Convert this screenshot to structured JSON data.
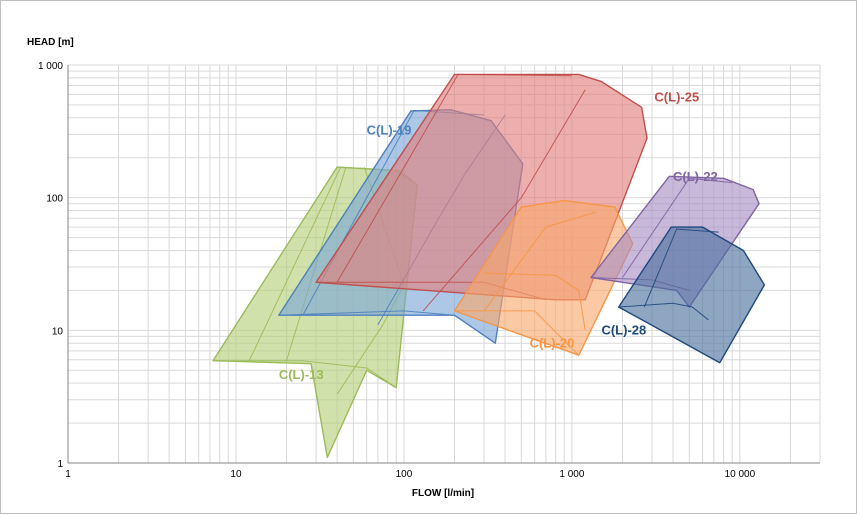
{
  "chart_data": {
    "type": "area",
    "xlabel": "FLOW [l/min]",
    "ylabel": "HEAD [m]",
    "x_scale": "log",
    "y_scale": "log",
    "xlim": [
      1,
      30000
    ],
    "ylim": [
      1,
      1000
    ],
    "grid": true,
    "x_ticks": [
      {
        "value": 1,
        "label": "1"
      },
      {
        "value": 10,
        "label": "10"
      },
      {
        "value": 100,
        "label": "100"
      },
      {
        "value": 1000,
        "label": "1 000"
      },
      {
        "value": 10000,
        "label": "10 000"
      }
    ],
    "y_ticks": [
      {
        "value": 1,
        "label": "1"
      },
      {
        "value": 10,
        "label": "10"
      },
      {
        "value": 100,
        "label": "100"
      },
      {
        "value": 1000,
        "label": "1 000"
      }
    ],
    "series": [
      {
        "name": "C(L)-13",
        "color": "#9bbb59",
        "fill": "#b3cf78",
        "label": {
          "x": 18,
          "y": 4.3
        },
        "envelope": [
          [
            7.3,
            5.9
          ],
          [
            40,
            170
          ],
          [
            90,
            160
          ],
          [
            120,
            125
          ],
          [
            90,
            3.7
          ],
          [
            60,
            5
          ],
          [
            35,
            1.1
          ],
          [
            28,
            5.6
          ],
          [
            7.3,
            5.9
          ]
        ],
        "curves": [
          [
            [
              12,
              5.9
            ],
            [
              42,
              170
            ],
            [
              95,
              160
            ],
            [
              120,
              125
            ]
          ],
          [
            [
              20,
              5.9
            ],
            [
              45,
              168
            ]
          ],
          [
            [
              40,
              3.3
            ],
            [
              75,
              11
            ],
            [
              100,
              22
            ],
            [
              58,
              170
            ]
          ],
          [
            [
              7.3,
              5.9
            ],
            [
              25,
              5.9
            ],
            [
              60,
              5.2
            ],
            [
              90,
              3.7
            ]
          ]
        ]
      },
      {
        "name": "C(L)-19",
        "color": "#4f81bd",
        "fill": "#7aa6d8",
        "label": {
          "x": 60,
          "y": 300
        },
        "envelope": [
          [
            18,
            13
          ],
          [
            110,
            450
          ],
          [
            190,
            460
          ],
          [
            330,
            380
          ],
          [
            510,
            180
          ],
          [
            350,
            8
          ],
          [
            200,
            13
          ],
          [
            18,
            13
          ]
        ],
        "curves": [
          [
            [
              25,
              13
            ],
            [
              115,
              455
            ],
            [
              300,
              420
            ]
          ],
          [
            [
              70,
              11
            ],
            [
              150,
              60
            ],
            [
              230,
              150
            ],
            [
              400,
              420
            ]
          ],
          [
            [
              18,
              13
            ],
            [
              100,
              14
            ],
            [
              200,
              13
            ],
            [
              350,
              8
            ]
          ]
        ]
      },
      {
        "name": "C(L)-25",
        "color": "#c0504d",
        "fill": "#e27e7b",
        "label": {
          "x": 3100,
          "y": 530
        },
        "envelope": [
          [
            30,
            23
          ],
          [
            200,
            850
          ],
          [
            1100,
            850
          ],
          [
            1500,
            750
          ],
          [
            2600,
            480
          ],
          [
            2800,
            280
          ],
          [
            1200,
            17
          ],
          [
            800,
            17
          ],
          [
            30,
            23
          ]
        ],
        "curves": [
          [
            [
              40,
              23
            ],
            [
              210,
              850
            ],
            [
              1000,
              830
            ]
          ],
          [
            [
              130,
              14
            ],
            [
              500,
              100
            ],
            [
              1200,
              650
            ]
          ],
          [
            [
              30,
              23
            ],
            [
              300,
              23
            ],
            [
              700,
              17
            ]
          ]
        ]
      },
      {
        "name": "C(L)-20",
        "color": "#f79646",
        "fill": "#f9a86b",
        "label": {
          "x": 560,
          "y": 7.4
        },
        "envelope": [
          [
            200,
            14
          ],
          [
            500,
            85
          ],
          [
            900,
            95
          ],
          [
            1800,
            85
          ],
          [
            2300,
            45
          ],
          [
            1100,
            6.5
          ],
          [
            200,
            14
          ]
        ],
        "curves": [
          [
            [
              300,
              14
            ],
            [
              700,
              60
            ],
            [
              1400,
              78
            ]
          ],
          [
            [
              300,
              27
            ],
            [
              800,
              26
            ],
            [
              1100,
              20
            ],
            [
              1200,
              10
            ]
          ],
          [
            [
              200,
              14
            ],
            [
              600,
              14
            ],
            [
              1100,
              6.5
            ]
          ]
        ]
      },
      {
        "name": "C(L)-22",
        "color": "#8064a2",
        "fill": "#a78dc4",
        "label": {
          "x": 4000,
          "y": 133
        },
        "envelope": [
          [
            1300,
            25
          ],
          [
            3800,
            145
          ],
          [
            8000,
            140
          ],
          [
            12000,
            115
          ],
          [
            13000,
            90
          ],
          [
            5000,
            15
          ],
          [
            4200,
            20
          ],
          [
            1300,
            25
          ]
        ],
        "curves": [
          [
            [
              2000,
              25
            ],
            [
              5000,
              140
            ],
            [
              9000,
              130
            ]
          ],
          [
            [
              1300,
              25
            ],
            [
              3000,
              24
            ],
            [
              5000,
              20
            ]
          ]
        ]
      },
      {
        "name": "C(L)-28",
        "color": "#1f497d",
        "fill": "#4a6f9e",
        "label": {
          "x": 1500,
          "y": 9.3
        },
        "envelope": [
          [
            1900,
            15
          ],
          [
            3900,
            60
          ],
          [
            6000,
            60
          ],
          [
            10500,
            40
          ],
          [
            14000,
            22
          ],
          [
            7600,
            5.7
          ],
          [
            1900,
            15
          ]
        ],
        "curves": [
          [
            [
              2700,
              15
            ],
            [
              4200,
              58
            ],
            [
              7500,
              55
            ]
          ],
          [
            [
              1900,
              15
            ],
            [
              4000,
              16
            ],
            [
              5200,
              15
            ],
            [
              6500,
              12
            ]
          ]
        ]
      }
    ]
  }
}
